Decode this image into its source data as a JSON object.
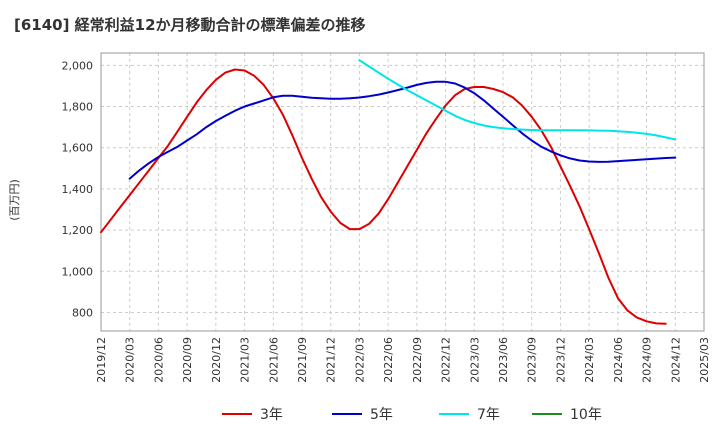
{
  "title": "[6140]  経常利益12か月移動合計の標準偏差の推移",
  "chart_data": {
    "type": "line",
    "title": "[6140]  経常利益12か月移動合計の標準偏差の推移",
    "ylabel": "(百万円)",
    "xlabel": "",
    "ylim": [
      710,
      2060
    ],
    "yticks": [
      800,
      1000,
      1200,
      1400,
      1600,
      1800,
      2000
    ],
    "ytick_labels": [
      "800",
      "1,000",
      "1,200",
      "1,400",
      "1,600",
      "1,800",
      "2,000"
    ],
    "xticks": [
      "2019/12",
      "2020/03",
      "2020/06",
      "2020/09",
      "2020/12",
      "2021/03",
      "2021/06",
      "2021/09",
      "2021/12",
      "2022/03",
      "2022/06",
      "2022/09",
      "2022/12",
      "2023/03",
      "2023/06",
      "2023/09",
      "2023/12",
      "2024/03",
      "2024/06",
      "2024/09",
      "2024/12",
      "2025/03"
    ],
    "grid": true,
    "legend_position": "bottom",
    "series": [
      {
        "name": "3年",
        "color": "#dd0000",
        "points": [
          [
            "2019/12",
            1190
          ],
          [
            "2020/01",
            1250
          ],
          [
            "2020/02",
            1310
          ],
          [
            "2020/03",
            1370
          ],
          [
            "2020/04",
            1430
          ],
          [
            "2020/05",
            1490
          ],
          [
            "2020/06",
            1550
          ],
          [
            "2020/07",
            1610
          ],
          [
            "2020/08",
            1680
          ],
          [
            "2020/09",
            1750
          ],
          [
            "2020/10",
            1820
          ],
          [
            "2020/11",
            1880
          ],
          [
            "2020/12",
            1930
          ],
          [
            "2021/01",
            1965
          ],
          [
            "2021/02",
            1980
          ],
          [
            "2021/03",
            1975
          ],
          [
            "2021/04",
            1950
          ],
          [
            "2021/05",
            1905
          ],
          [
            "2021/06",
            1840
          ],
          [
            "2021/07",
            1760
          ],
          [
            "2021/08",
            1660
          ],
          [
            "2021/09",
            1550
          ],
          [
            "2021/10",
            1450
          ],
          [
            "2021/11",
            1360
          ],
          [
            "2021/12",
            1290
          ],
          [
            "2022/01",
            1235
          ],
          [
            "2022/02",
            1205
          ],
          [
            "2022/03",
            1205
          ],
          [
            "2022/04",
            1230
          ],
          [
            "2022/05",
            1280
          ],
          [
            "2022/06",
            1350
          ],
          [
            "2022/07",
            1430
          ],
          [
            "2022/08",
            1510
          ],
          [
            "2022/09",
            1590
          ],
          [
            "2022/10",
            1670
          ],
          [
            "2022/11",
            1740
          ],
          [
            "2022/12",
            1805
          ],
          [
            "2023/01",
            1855
          ],
          [
            "2023/02",
            1885
          ],
          [
            "2023/03",
            1895
          ],
          [
            "2023/04",
            1895
          ],
          [
            "2023/05",
            1885
          ],
          [
            "2023/06",
            1870
          ],
          [
            "2023/07",
            1845
          ],
          [
            "2023/08",
            1805
          ],
          [
            "2023/09",
            1750
          ],
          [
            "2023/10",
            1685
          ],
          [
            "2023/11",
            1605
          ],
          [
            "2023/12",
            1510
          ],
          [
            "2024/01",
            1415
          ],
          [
            "2024/02",
            1315
          ],
          [
            "2024/03",
            1205
          ],
          [
            "2024/04",
            1090
          ],
          [
            "2024/05",
            970
          ],
          [
            "2024/06",
            870
          ],
          [
            "2024/07",
            810
          ],
          [
            "2024/08",
            775
          ],
          [
            "2024/09",
            757
          ],
          [
            "2024/10",
            747
          ],
          [
            "2024/11",
            745
          ]
        ]
      },
      {
        "name": "5年",
        "color": "#0000cc",
        "points": [
          [
            "2020/03",
            1450
          ],
          [
            "2020/04",
            1490
          ],
          [
            "2020/05",
            1525
          ],
          [
            "2020/06",
            1555
          ],
          [
            "2020/07",
            1580
          ],
          [
            "2020/08",
            1605
          ],
          [
            "2020/09",
            1635
          ],
          [
            "2020/10",
            1665
          ],
          [
            "2020/11",
            1700
          ],
          [
            "2020/12",
            1730
          ],
          [
            "2021/01",
            1755
          ],
          [
            "2021/02",
            1780
          ],
          [
            "2021/03",
            1800
          ],
          [
            "2021/04",
            1815
          ],
          [
            "2021/05",
            1830
          ],
          [
            "2021/06",
            1845
          ],
          [
            "2021/07",
            1852
          ],
          [
            "2021/08",
            1852
          ],
          [
            "2021/09",
            1848
          ],
          [
            "2021/10",
            1843
          ],
          [
            "2021/11",
            1840
          ],
          [
            "2021/12",
            1838
          ],
          [
            "2022/01",
            1838
          ],
          [
            "2022/02",
            1840
          ],
          [
            "2022/03",
            1844
          ],
          [
            "2022/04",
            1850
          ],
          [
            "2022/05",
            1858
          ],
          [
            "2022/06",
            1868
          ],
          [
            "2022/07",
            1880
          ],
          [
            "2022/08",
            1892
          ],
          [
            "2022/09",
            1905
          ],
          [
            "2022/10",
            1915
          ],
          [
            "2022/11",
            1920
          ],
          [
            "2022/12",
            1920
          ],
          [
            "2023/01",
            1912
          ],
          [
            "2023/02",
            1892
          ],
          [
            "2023/03",
            1865
          ],
          [
            "2023/04",
            1830
          ],
          [
            "2023/05",
            1790
          ],
          [
            "2023/06",
            1750
          ],
          [
            "2023/07",
            1710
          ],
          [
            "2023/08",
            1670
          ],
          [
            "2023/09",
            1635
          ],
          [
            "2023/10",
            1605
          ],
          [
            "2023/11",
            1582
          ],
          [
            "2023/12",
            1563
          ],
          [
            "2024/01",
            1548
          ],
          [
            "2024/02",
            1538
          ],
          [
            "2024/03",
            1533
          ],
          [
            "2024/04",
            1531
          ],
          [
            "2024/05",
            1532
          ],
          [
            "2024/06",
            1535
          ],
          [
            "2024/07",
            1538
          ],
          [
            "2024/08",
            1541
          ],
          [
            "2024/09",
            1544
          ],
          [
            "2024/10",
            1547
          ],
          [
            "2024/11",
            1550
          ],
          [
            "2024/12",
            1552
          ]
        ]
      },
      {
        "name": "7年",
        "color": "#00e5e5",
        "points": [
          [
            "2022/03",
            2025
          ],
          [
            "2022/04",
            1995
          ],
          [
            "2022/05",
            1965
          ],
          [
            "2022/06",
            1935
          ],
          [
            "2022/07",
            1907
          ],
          [
            "2022/08",
            1880
          ],
          [
            "2022/09",
            1855
          ],
          [
            "2022/10",
            1830
          ],
          [
            "2022/11",
            1805
          ],
          [
            "2022/12",
            1780
          ],
          [
            "2023/01",
            1755
          ],
          [
            "2023/02",
            1735
          ],
          [
            "2023/03",
            1720
          ],
          [
            "2023/04",
            1708
          ],
          [
            "2023/05",
            1700
          ],
          [
            "2023/06",
            1695
          ],
          [
            "2023/07",
            1691
          ],
          [
            "2023/08",
            1688
          ],
          [
            "2023/09",
            1686
          ],
          [
            "2023/10",
            1685
          ],
          [
            "2023/11",
            1685
          ],
          [
            "2023/12",
            1685
          ],
          [
            "2024/01",
            1685
          ],
          [
            "2024/02",
            1685
          ],
          [
            "2024/03",
            1684
          ],
          [
            "2024/04",
            1683
          ],
          [
            "2024/05",
            1682
          ],
          [
            "2024/06",
            1680
          ],
          [
            "2024/07",
            1677
          ],
          [
            "2024/08",
            1673
          ],
          [
            "2024/09",
            1667
          ],
          [
            "2024/10",
            1660
          ],
          [
            "2024/11",
            1650
          ],
          [
            "2024/12",
            1640
          ]
        ]
      },
      {
        "name": "10年",
        "color": "#228822",
        "points": []
      }
    ]
  }
}
